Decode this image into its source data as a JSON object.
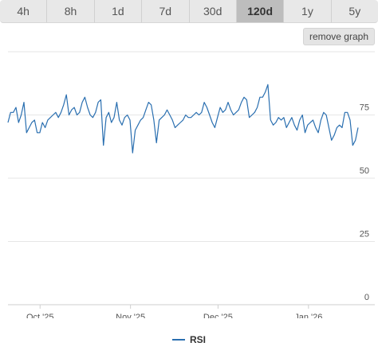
{
  "tabs": [
    {
      "label": "4h",
      "active": false
    },
    {
      "label": "8h",
      "active": false
    },
    {
      "label": "1d",
      "active": false
    },
    {
      "label": "7d",
      "active": false
    },
    {
      "label": "30d",
      "active": false
    },
    {
      "label": "120d",
      "active": true
    },
    {
      "label": "1y",
      "active": false
    },
    {
      "label": "5y",
      "active": false
    }
  ],
  "remove_button_label": "remove graph",
  "chart_data": {
    "type": "line",
    "title": "",
    "xlabel": "",
    "ylabel": "",
    "ylim": [
      0,
      100
    ],
    "yticks": [
      0,
      25,
      50,
      75
    ],
    "grid": true,
    "legend_position": "bottom",
    "x_start": "2025-09-20",
    "x_end": "2026-01-18",
    "xticks": [
      {
        "date": "2025-10-01",
        "label": "Oct '25"
      },
      {
        "date": "2025-11-01",
        "label": "Nov '25"
      },
      {
        "date": "2025-12-01",
        "label": "Dec '25"
      },
      {
        "date": "2026-01-01",
        "label": "Jan '26"
      }
    ],
    "series": [
      {
        "name": "RSI",
        "color": "#2a6fb0",
        "values": [
          72,
          76,
          76,
          78,
          72,
          75,
          80,
          68,
          70,
          72,
          73,
          68,
          68,
          72,
          70,
          73,
          74,
          75,
          76,
          74,
          76,
          79,
          83,
          75,
          77,
          78,
          75,
          76,
          80,
          82,
          78,
          75,
          74,
          76,
          80,
          81,
          63,
          74,
          76,
          72,
          74,
          80,
          73,
          71,
          74,
          75,
          73,
          60,
          69,
          71,
          73,
          74,
          77,
          80,
          79,
          73,
          64,
          73,
          74,
          75,
          77,
          75,
          73,
          70,
          71,
          72,
          73,
          75,
          74,
          74,
          75,
          76,
          75,
          76,
          80,
          78,
          75,
          72,
          70,
          74,
          78,
          76,
          77,
          80,
          77,
          75,
          76,
          77,
          80,
          82,
          81,
          74,
          75,
          76,
          78,
          82,
          82,
          84,
          87,
          73,
          71,
          72,
          74,
          73,
          74,
          70,
          72,
          74,
          71,
          69,
          73,
          75,
          68,
          71,
          72,
          73,
          70,
          68,
          73,
          76,
          75,
          70,
          65,
          67,
          70,
          71,
          70,
          76,
          76,
          73,
          63,
          65,
          70
        ]
      }
    ]
  }
}
